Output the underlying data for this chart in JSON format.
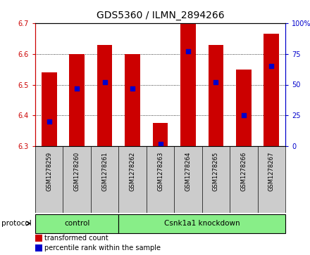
{
  "title": "GDS5360 / ILMN_2894266",
  "samples": [
    "GSM1278259",
    "GSM1278260",
    "GSM1278261",
    "GSM1278262",
    "GSM1278263",
    "GSM1278264",
    "GSM1278265",
    "GSM1278266",
    "GSM1278267"
  ],
  "transformed_counts": [
    6.54,
    6.6,
    6.63,
    6.6,
    6.375,
    6.7,
    6.63,
    6.55,
    6.665
  ],
  "percentile_ranks": [
    20,
    47,
    52,
    47,
    2,
    77,
    52,
    25,
    65
  ],
  "ylim_left": [
    6.3,
    6.7
  ],
  "ylim_right": [
    0,
    100
  ],
  "yticks_left": [
    6.3,
    6.4,
    6.5,
    6.6,
    6.7
  ],
  "yticks_right": [
    0,
    25,
    50,
    75,
    100
  ],
  "bar_color": "#cc0000",
  "dot_color": "#0000cc",
  "bar_bottom": 6.3,
  "protocol_groups": [
    {
      "label": "control",
      "start": 0,
      "end": 3
    },
    {
      "label": "Csnk1a1 knockdown",
      "start": 3,
      "end": 9
    }
  ],
  "protocol_label": "protocol",
  "legend_items": [
    {
      "label": "transformed count",
      "color": "#cc0000"
    },
    {
      "label": "percentile rank within the sample",
      "color": "#0000cc"
    }
  ],
  "background_color": "#ffffff",
  "plot_bg_color": "#ffffff",
  "tick_area_bg": "#cccccc",
  "protocol_bg": "#88ee88",
  "left_tick_color": "#cc0000",
  "right_tick_color": "#0000cc",
  "title_fontsize": 10,
  "tick_fontsize": 7,
  "bar_width": 0.55
}
